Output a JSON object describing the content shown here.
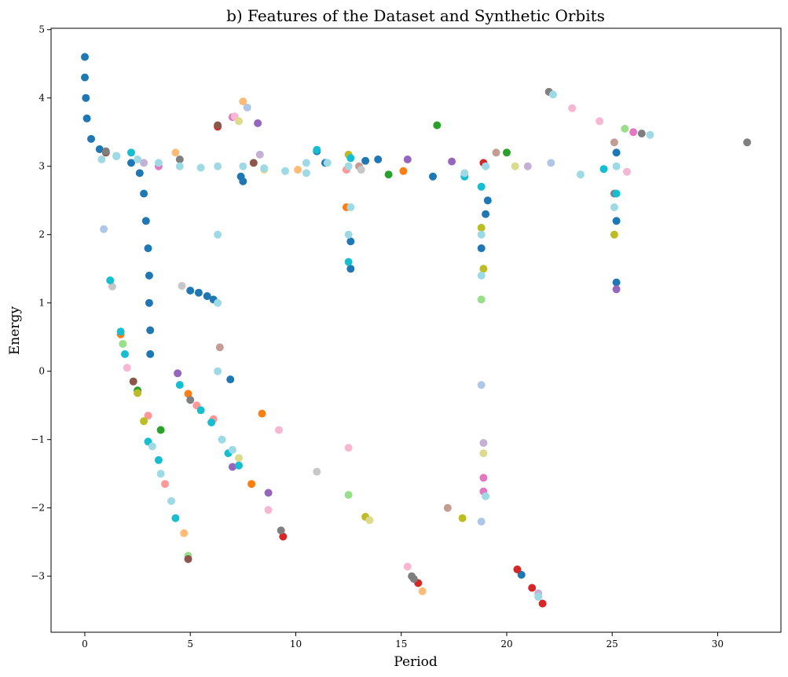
{
  "chart_data": {
    "type": "scatter",
    "title": "b) Features of the Dataset and Synthetic Orbits",
    "xlabel": "Period",
    "ylabel": "Energy",
    "xlim": [
      -1.6,
      33.0
    ],
    "ylim": [
      -3.82,
      5.02
    ],
    "xticks": [
      0,
      5,
      10,
      15,
      20,
      25,
      30
    ],
    "yticks": [
      -3,
      -2,
      -1,
      0,
      1,
      2,
      3,
      4,
      5
    ],
    "xtick_labels": [
      "0",
      "5",
      "10",
      "15",
      "20",
      "25",
      "30"
    ],
    "ytick_labels": [
      "−3",
      "−2",
      "−1",
      "0",
      "1",
      "2",
      "3",
      "4",
      "5"
    ],
    "grid": false,
    "legend": "none",
    "colors": [
      "#1f77b4",
      "#aec7e8",
      "#ff7f0e",
      "#ffbb78",
      "#2ca02c",
      "#98df8a",
      "#d62728",
      "#ff9896",
      "#9467bd",
      "#c5b0d5",
      "#8c564b",
      "#c49c94",
      "#e377c2",
      "#f7b6d2",
      "#7f7f7f",
      "#c7c7c7",
      "#bcbd22",
      "#dbdb8d",
      "#17becf",
      "#9edae5"
    ],
    "series": [
      {
        "color": "#1f77b4",
        "points": [
          [
            0.0,
            4.6
          ],
          [
            0.0,
            4.3
          ],
          [
            0.05,
            4.0
          ],
          [
            0.1,
            3.7
          ],
          [
            0.3,
            3.4
          ],
          [
            0.7,
            3.25
          ],
          [
            1.5,
            3.15
          ],
          [
            2.2,
            3.05
          ],
          [
            2.6,
            2.9
          ],
          [
            2.8,
            2.6
          ],
          [
            2.9,
            2.2
          ],
          [
            3.0,
            1.8
          ],
          [
            3.05,
            1.4
          ],
          [
            3.05,
            1.0
          ],
          [
            3.1,
            0.6
          ],
          [
            3.1,
            0.25
          ],
          [
            5.0,
            1.18
          ],
          [
            5.4,
            1.15
          ],
          [
            5.8,
            1.1
          ],
          [
            6.1,
            1.05
          ],
          [
            6.9,
            -0.12
          ],
          [
            7.4,
            2.85
          ],
          [
            7.5,
            2.78
          ],
          [
            11.0,
            3.22
          ],
          [
            11.4,
            3.05
          ],
          [
            12.6,
            1.5
          ],
          [
            12.6,
            1.9
          ],
          [
            13.3,
            3.08
          ],
          [
            13.9,
            3.1
          ],
          [
            16.5,
            2.85
          ],
          [
            19.0,
            2.3
          ],
          [
            19.1,
            2.5
          ],
          [
            20.7,
            -2.98
          ],
          [
            25.2,
            3.2
          ],
          [
            25.2,
            2.2
          ],
          [
            25.2,
            1.3
          ],
          [
            18.8,
            1.8
          ]
        ]
      },
      {
        "color": "#aec7e8",
        "points": [
          [
            0.9,
            2.08
          ],
          [
            7.7,
            3.86
          ],
          [
            18.8,
            -0.2
          ],
          [
            18.8,
            -2.2
          ],
          [
            22.1,
            3.05
          ]
        ]
      },
      {
        "color": "#ff7f0e",
        "points": [
          [
            1.7,
            0.54
          ],
          [
            4.9,
            -0.33
          ],
          [
            8.4,
            -0.62
          ],
          [
            7.9,
            -1.65
          ],
          [
            15.1,
            2.93
          ],
          [
            12.4,
            2.4
          ]
        ]
      },
      {
        "color": "#ffbb78",
        "points": [
          [
            4.7,
            -2.37
          ],
          [
            7.5,
            3.95
          ],
          [
            16.0,
            -3.22
          ],
          [
            4.3,
            3.2
          ],
          [
            10.1,
            2.95
          ]
        ]
      },
      {
        "color": "#2ca02c",
        "points": [
          [
            2.5,
            -0.28
          ],
          [
            3.6,
            -0.86
          ],
          [
            14.4,
            2.88
          ],
          [
            16.7,
            3.6
          ],
          [
            20.0,
            3.2
          ]
        ]
      },
      {
        "color": "#98df8a",
        "points": [
          [
            1.8,
            0.4
          ],
          [
            4.9,
            -2.7
          ],
          [
            12.5,
            -1.81
          ],
          [
            25.6,
            3.55
          ],
          [
            18.8,
            1.05
          ]
        ]
      },
      {
        "color": "#d62728",
        "points": [
          [
            9.4,
            -2.42
          ],
          [
            15.8,
            -3.1
          ],
          [
            20.5,
            -2.9
          ],
          [
            21.2,
            -3.17
          ],
          [
            21.7,
            -3.4
          ],
          [
            6.3,
            3.58
          ],
          [
            18.9,
            3.05
          ]
        ]
      },
      {
        "color": "#ff9896",
        "points": [
          [
            3.0,
            -0.65
          ],
          [
            5.3,
            -0.5
          ],
          [
            3.8,
            -1.65
          ],
          [
            6.1,
            -0.7
          ],
          [
            12.4,
            2.95
          ]
        ]
      },
      {
        "color": "#9467bd",
        "points": [
          [
            4.4,
            -0.03
          ],
          [
            8.7,
            -1.78
          ],
          [
            8.2,
            3.63
          ],
          [
            15.3,
            3.1
          ],
          [
            17.4,
            3.07
          ],
          [
            7.0,
            -1.4
          ],
          [
            25.2,
            1.2
          ]
        ]
      },
      {
        "color": "#c5b0d5",
        "points": [
          [
            8.3,
            3.17
          ],
          [
            18.9,
            -1.05
          ],
          [
            21.5,
            -3.25
          ],
          [
            21.0,
            3.0
          ],
          [
            2.8,
            3.05
          ]
        ]
      },
      {
        "color": "#8c564b",
        "points": [
          [
            2.3,
            -0.15
          ],
          [
            4.9,
            -2.75
          ],
          [
            6.3,
            3.6
          ],
          [
            1.0,
            3.2
          ],
          [
            8.0,
            3.05
          ]
        ]
      },
      {
        "color": "#c49c94",
        "points": [
          [
            6.4,
            0.35
          ],
          [
            17.2,
            -2.0
          ],
          [
            13.0,
            3.0
          ],
          [
            19.5,
            3.2
          ],
          [
            25.1,
            3.35
          ]
        ]
      },
      {
        "color": "#e377c2",
        "points": [
          [
            18.9,
            -1.56
          ],
          [
            18.9,
            -1.76
          ],
          [
            26.0,
            3.5
          ],
          [
            7.0,
            3.72
          ],
          [
            3.5,
            3.0
          ]
        ]
      },
      {
        "color": "#f7b6d2",
        "points": [
          [
            2.0,
            0.05
          ],
          [
            9.2,
            -0.86
          ],
          [
            8.7,
            -2.03
          ],
          [
            12.5,
            -1.12
          ],
          [
            15.3,
            -2.86
          ],
          [
            23.1,
            3.85
          ],
          [
            24.4,
            3.66
          ],
          [
            25.7,
            2.92
          ],
          [
            7.1,
            3.73
          ]
        ]
      },
      {
        "color": "#7f7f7f",
        "points": [
          [
            9.3,
            -2.33
          ],
          [
            15.5,
            -3.0
          ],
          [
            15.6,
            -3.04
          ],
          [
            22.0,
            4.09
          ],
          [
            26.4,
            3.48
          ],
          [
            31.4,
            3.35
          ],
          [
            1.0,
            3.22
          ],
          [
            5.0,
            -0.42
          ],
          [
            25.1,
            2.6
          ],
          [
            4.5,
            3.1
          ]
        ]
      },
      {
        "color": "#c7c7c7",
        "points": [
          [
            1.3,
            1.24
          ],
          [
            4.6,
            1.25
          ],
          [
            11.0,
            -1.47
          ],
          [
            13.1,
            2.95
          ]
        ]
      },
      {
        "color": "#bcbd22",
        "points": [
          [
            2.5,
            -0.32
          ],
          [
            13.3,
            -2.13
          ],
          [
            17.9,
            -2.15
          ],
          [
            18.8,
            2.1
          ],
          [
            18.9,
            1.5
          ],
          [
            25.1,
            2.0
          ],
          [
            12.5,
            3.17
          ],
          [
            2.8,
            -0.73
          ]
        ]
      },
      {
        "color": "#dbdb8d",
        "points": [
          [
            7.3,
            3.66
          ],
          [
            7.3,
            -1.27
          ],
          [
            13.5,
            -2.18
          ],
          [
            18.9,
            -1.2
          ],
          [
            8.5,
            2.95
          ],
          [
            20.4,
            3.0
          ]
        ]
      },
      {
        "color": "#17becf",
        "points": [
          [
            1.2,
            1.33
          ],
          [
            1.7,
            0.58
          ],
          [
            1.9,
            0.25
          ],
          [
            4.5,
            -0.2
          ],
          [
            12.5,
            1.6
          ],
          [
            18.8,
            2.7
          ],
          [
            24.6,
            2.96
          ],
          [
            25.2,
            2.6
          ],
          [
            12.6,
            3.12
          ],
          [
            11.0,
            3.24
          ],
          [
            18.0,
            2.85
          ],
          [
            2.2,
            3.2
          ],
          [
            3.0,
            -1.03
          ],
          [
            3.5,
            -1.3
          ],
          [
            4.3,
            -2.15
          ],
          [
            5.5,
            -0.57
          ],
          [
            6.0,
            -0.75
          ],
          [
            6.8,
            -1.2
          ],
          [
            7.3,
            -1.38
          ]
        ]
      },
      {
        "color": "#9edae5",
        "points": [
          [
            0.8,
            3.1
          ],
          [
            1.5,
            3.15
          ],
          [
            2.5,
            3.1
          ],
          [
            3.5,
            3.05
          ],
          [
            4.5,
            3.0
          ],
          [
            5.5,
            2.98
          ],
          [
            6.3,
            3.0
          ],
          [
            7.5,
            3.0
          ],
          [
            8.5,
            2.97
          ],
          [
            9.5,
            2.93
          ],
          [
            10.5,
            2.9
          ],
          [
            11.5,
            3.05
          ],
          [
            12.5,
            3.0
          ],
          [
            19.0,
            3.0
          ],
          [
            18.8,
            2.0
          ],
          [
            18.8,
            1.4
          ],
          [
            12.6,
            2.4
          ],
          [
            12.5,
            2.0
          ],
          [
            6.3,
            2.0
          ],
          [
            6.3,
            1.0
          ],
          [
            6.3,
            0.0
          ],
          [
            6.5,
            -1.0
          ],
          [
            7.0,
            -1.15
          ],
          [
            3.2,
            -1.1
          ],
          [
            3.6,
            -1.5
          ],
          [
            4.1,
            -1.9
          ],
          [
            19.0,
            -1.83
          ],
          [
            22.2,
            4.05
          ],
          [
            26.8,
            3.46
          ],
          [
            25.2,
            3.0
          ],
          [
            21.5,
            -3.3
          ],
          [
            23.5,
            2.88
          ],
          [
            25.1,
            2.4
          ],
          [
            18.0,
            2.9
          ],
          [
            10.5,
            3.05
          ]
        ]
      }
    ]
  }
}
